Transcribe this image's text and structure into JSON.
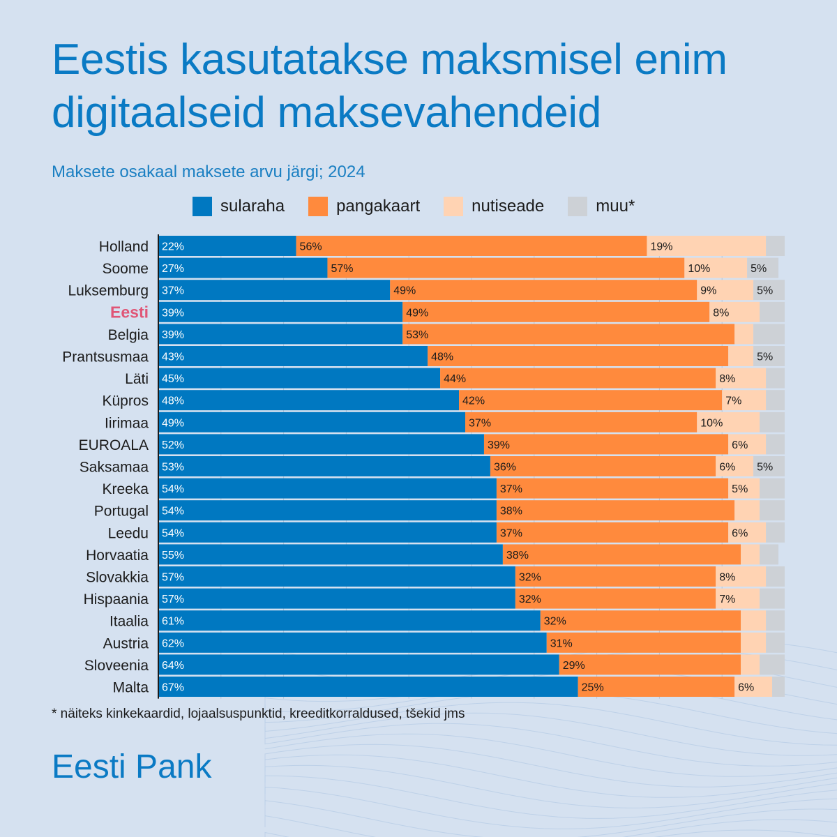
{
  "header": {
    "title": "Eestis kasutatakse maksmisel enim digitaalseid maksevahendeid",
    "subtitle": "Maksete osakaal maksete arvu järgi; 2024"
  },
  "footnote": "* näiteks kinkekaardid, lojaalsuspunktid, kreeditkorraldused, tšekid jms",
  "brand": "Eesti Pank",
  "colors": {
    "sularaha": "#0078c1",
    "pangakaart": "#ff8a3d",
    "nutiseade": "#ffd3b3",
    "muu": "#cdd1d6",
    "highlight_label": "#e05576",
    "title": "#0a7ac4"
  },
  "chart_data": {
    "type": "bar",
    "orientation": "horizontal",
    "stacked": true,
    "xlim": [
      0,
      100
    ],
    "grid": true,
    "legend_position": "top",
    "highlight_category": "Eesti",
    "categories": [
      "Holland",
      "Soome",
      "Luksemburg",
      "Eesti",
      "Belgia",
      "Prantsusmaa",
      "Läti",
      "Küpros",
      "Iirimaa",
      "EUROALA",
      "Saksamaa",
      "Kreeka",
      "Portugal",
      "Leedu",
      "Horvaatia",
      "Slovakkia",
      "Hispaania",
      "Itaalia",
      "Austria",
      "Sloveenia",
      "Malta"
    ],
    "series": [
      {
        "name": "sularaha",
        "values": [
          22,
          27,
          37,
          39,
          39,
          43,
          45,
          48,
          49,
          52,
          53,
          54,
          54,
          54,
          55,
          57,
          57,
          61,
          62,
          64,
          67
        ]
      },
      {
        "name": "pangakaart",
        "values": [
          56,
          57,
          49,
          49,
          53,
          48,
          44,
          42,
          37,
          39,
          36,
          37,
          38,
          37,
          38,
          32,
          32,
          32,
          31,
          29,
          25
        ]
      },
      {
        "name": "nutiseade",
        "values": [
          19,
          10,
          9,
          8,
          3,
          4,
          8,
          7,
          10,
          6,
          6,
          5,
          4,
          6,
          3,
          8,
          7,
          4,
          4,
          3,
          6
        ]
      },
      {
        "name": "muu*",
        "values": [
          3,
          5,
          5,
          4,
          5,
          5,
          3,
          3,
          4,
          3,
          5,
          4,
          4,
          3,
          3,
          3,
          4,
          3,
          3,
          4,
          2
        ]
      }
    ],
    "data_labels": [
      [
        "22%",
        "56%",
        "19%",
        ""
      ],
      [
        "27%",
        "57%",
        "10%",
        "5%"
      ],
      [
        "37%",
        "49%",
        "9%",
        "5%"
      ],
      [
        "39%",
        "49%",
        "8%",
        ""
      ],
      [
        "39%",
        "53%",
        "",
        ""
      ],
      [
        "43%",
        "48%",
        "",
        "5%"
      ],
      [
        "45%",
        "44%",
        "8%",
        ""
      ],
      [
        "48%",
        "42%",
        "7%",
        ""
      ],
      [
        "49%",
        "37%",
        "10%",
        ""
      ],
      [
        "52%",
        "39%",
        "6%",
        ""
      ],
      [
        "53%",
        "36%",
        "6%",
        "5%"
      ],
      [
        "54%",
        "37%",
        "5%",
        ""
      ],
      [
        "54%",
        "38%",
        "",
        ""
      ],
      [
        "54%",
        "37%",
        "6%",
        ""
      ],
      [
        "55%",
        "38%",
        "",
        ""
      ],
      [
        "57%",
        "32%",
        "8%",
        ""
      ],
      [
        "57%",
        "32%",
        "7%",
        ""
      ],
      [
        "61%",
        "32%",
        "",
        ""
      ],
      [
        "62%",
        "31%",
        "",
        ""
      ],
      [
        "64%",
        "29%",
        "",
        ""
      ],
      [
        "67%",
        "25%",
        "6%",
        ""
      ]
    ]
  }
}
